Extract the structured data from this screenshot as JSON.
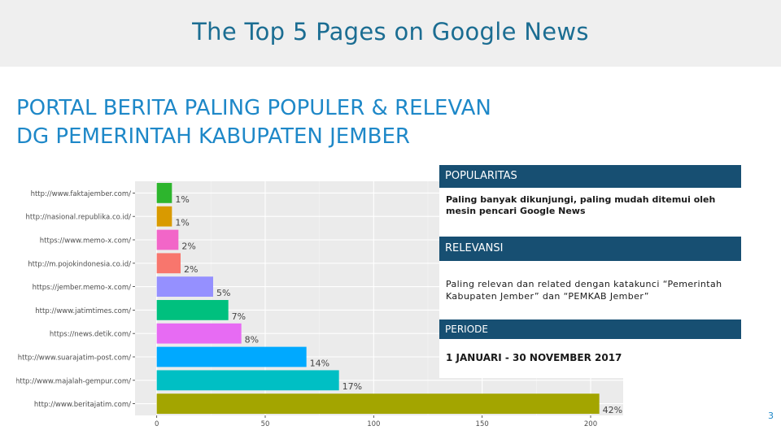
{
  "header": {
    "title": "The Top 5 Pages on Google News"
  },
  "heading": {
    "line1": "PORTAL BERITA PALING POPULER & RELEVAN",
    "line2": "DG PEMERINTAH KABUPATEN JEMBER"
  },
  "chart_data": {
    "type": "bar",
    "orientation": "horizontal",
    "categories": [
      "http://www.faktajember.com/",
      "http://nasional.republika.co.id/",
      "https://www.memo-x.com/",
      "http://m.pojokindonesia.co.id/",
      "https://jember.memo-x.com/",
      "http://www.jatimtimes.com/",
      "https://news.detik.com/",
      "http://www.suarajatim-post.com/",
      "http://www.majalah-gempur.com/",
      "http://www.beritajatim.com/"
    ],
    "values": [
      7,
      7,
      10,
      11,
      26,
      33,
      39,
      69,
      84,
      204
    ],
    "data_labels": [
      "1%",
      "1%",
      "2%",
      "2%",
      "5%",
      "7%",
      "8%",
      "14%",
      "17%",
      "42%"
    ],
    "colors": [
      "#2db52d",
      "#d99a00",
      "#f266c8",
      "#f8766d",
      "#9590ff",
      "#00c07e",
      "#e76bf3",
      "#00a9ff",
      "#00bfc4",
      "#a3a500"
    ],
    "x_ticks": [
      0,
      50,
      100,
      150,
      200
    ],
    "xlim": [
      -10,
      215
    ],
    "grid": true
  },
  "info": {
    "popularity_heading": "POPULARITAS",
    "popularity_text": "Paling banyak dikunjungi, paling mudah ditemui oleh mesin pencari Google News",
    "relevance_heading": "RELEVANSI",
    "relevance_text": "Paling relevan dan related dengan katakunci “Pemerintah Kabupaten Jember” dan “PEMKAB Jember”",
    "period_heading": "PERIODE",
    "period_text": "1 JANUARI - 30 NOVEMBER 2017"
  },
  "footer": {
    "page_number": "3"
  }
}
